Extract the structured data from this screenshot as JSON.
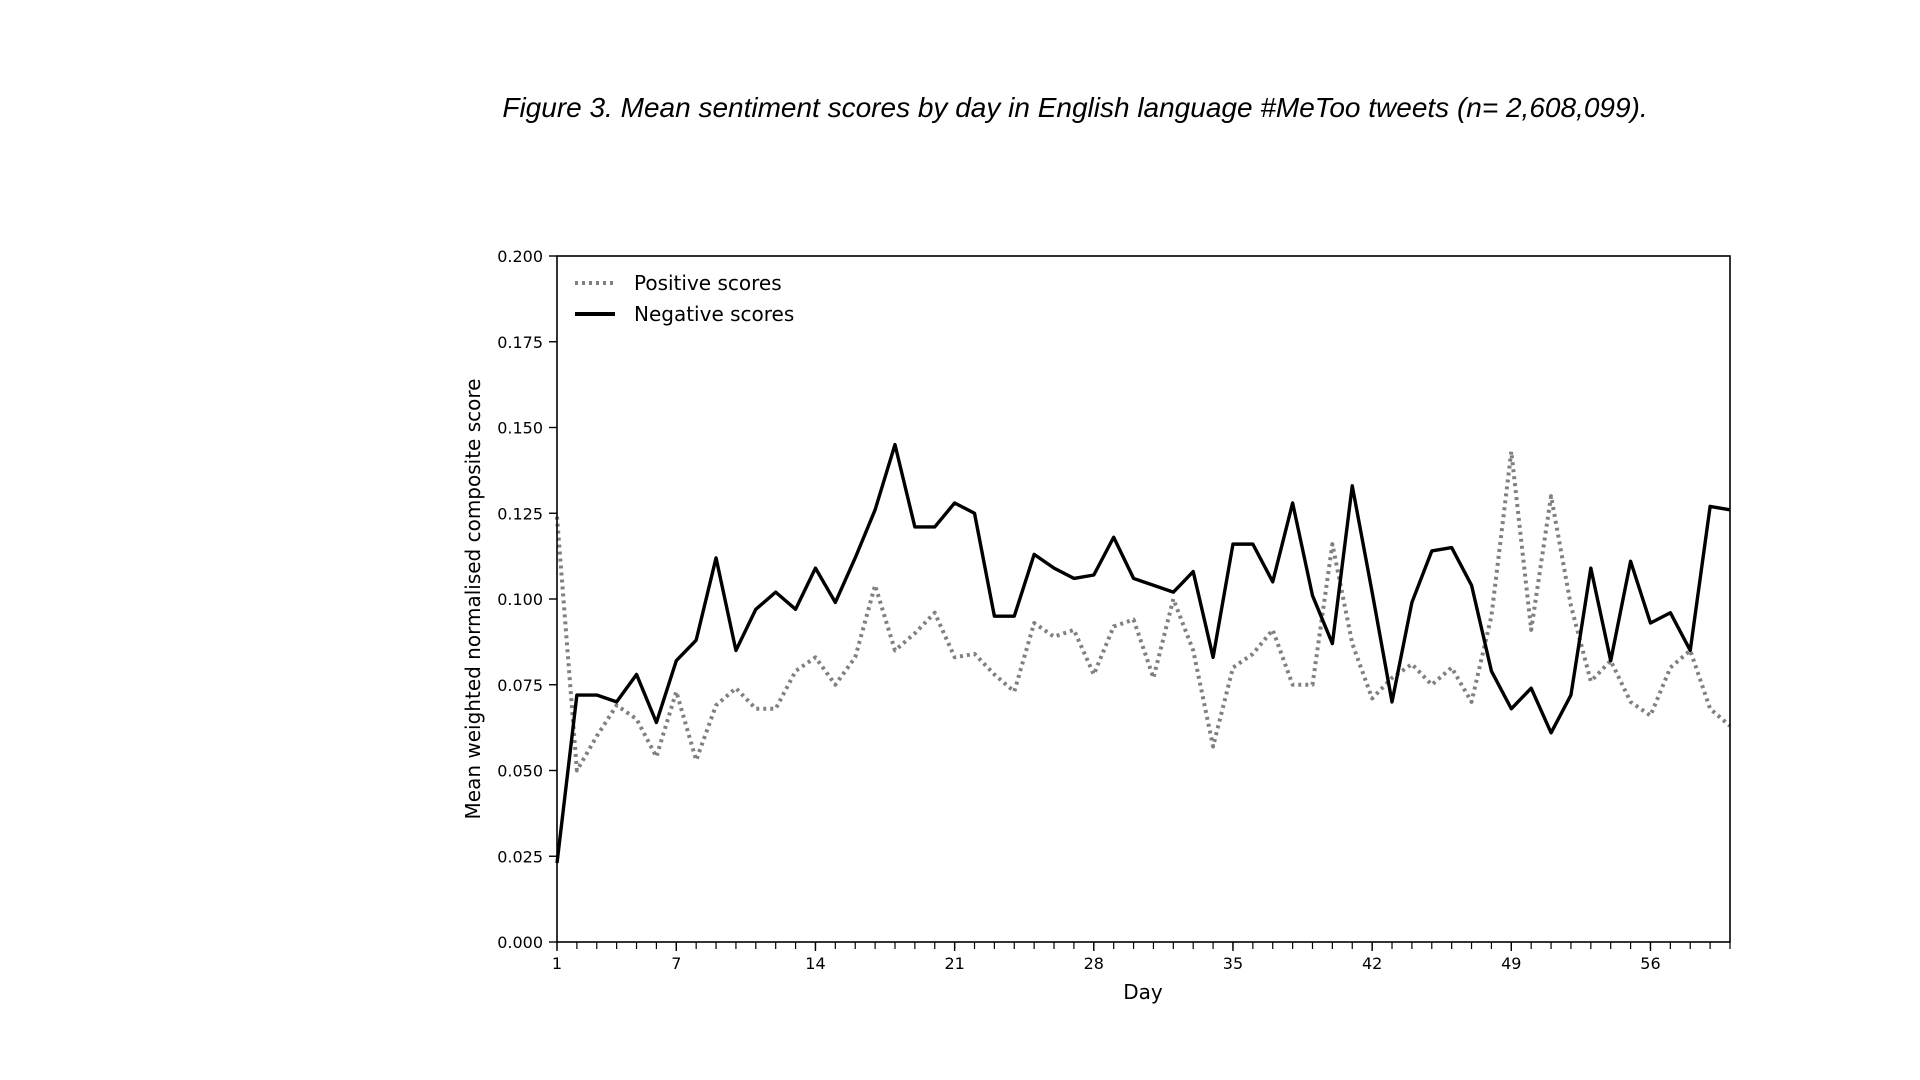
{
  "figure": {
    "title": "Figure 3. Mean sentiment scores by day in English language #MeToo tweets (n= 2,608,099)."
  },
  "chart_data": {
    "type": "line",
    "xlabel": "Day",
    "ylabel": "Mean weighted normalised composite score",
    "xlim": [
      1,
      60
    ],
    "ylim": [
      0,
      0.2
    ],
    "x_ticks": [
      1,
      7,
      14,
      21,
      28,
      35,
      42,
      49,
      56
    ],
    "y_ticks": [
      0,
      0.025,
      0.05,
      0.075,
      0.1,
      0.125,
      0.15,
      0.175,
      0.2
    ],
    "y_tick_labels": [
      "0.000",
      "0.025",
      "0.050",
      "0.075",
      "0.100",
      "0.125",
      "0.150",
      "0.175",
      "0.200"
    ],
    "legend_position": "top-left",
    "grid": false,
    "x": [
      1,
      2,
      3,
      4,
      5,
      6,
      7,
      8,
      9,
      10,
      11,
      12,
      13,
      14,
      15,
      16,
      17,
      18,
      19,
      20,
      21,
      22,
      23,
      24,
      25,
      26,
      27,
      28,
      29,
      30,
      31,
      32,
      33,
      34,
      35,
      36,
      37,
      38,
      39,
      40,
      41,
      42,
      43,
      44,
      45,
      46,
      47,
      48,
      49,
      50,
      51,
      52,
      53,
      54,
      55,
      56,
      57,
      58,
      59,
      60
    ],
    "series": [
      {
        "name": "Positive scores",
        "style": "dotted",
        "color": "#808080",
        "values": [
          0.124,
          0.05,
          0.06,
          0.069,
          0.065,
          0.054,
          0.073,
          0.053,
          0.069,
          0.074,
          0.068,
          0.068,
          0.079,
          0.083,
          0.075,
          0.083,
          0.104,
          0.085,
          0.09,
          0.096,
          0.083,
          0.084,
          0.078,
          0.073,
          0.093,
          0.089,
          0.091,
          0.078,
          0.092,
          0.094,
          0.077,
          0.1,
          0.085,
          0.057,
          0.08,
          0.084,
          0.091,
          0.075,
          0.075,
          0.116,
          0.087,
          0.071,
          0.077,
          0.081,
          0.075,
          0.08,
          0.07,
          0.095,
          0.143,
          0.091,
          0.13,
          0.098,
          0.076,
          0.082,
          0.07,
          0.066,
          0.08,
          0.085,
          0.068,
          0.063
        ]
      },
      {
        "name": "Negative scores",
        "style": "solid",
        "color": "#000000",
        "values": [
          0.023,
          0.072,
          0.072,
          0.07,
          0.078,
          0.064,
          0.082,
          0.088,
          0.112,
          0.085,
          0.097,
          0.102,
          0.097,
          0.109,
          0.099,
          0.112,
          0.126,
          0.145,
          0.121,
          0.121,
          0.128,
          0.125,
          0.095,
          0.095,
          0.113,
          0.109,
          0.106,
          0.107,
          0.118,
          0.106,
          0.104,
          0.102,
          0.108,
          0.083,
          0.116,
          0.116,
          0.105,
          0.128,
          0.101,
          0.087,
          0.133,
          0.102,
          0.07,
          0.099,
          0.114,
          0.115,
          0.104,
          0.079,
          0.068,
          0.074,
          0.061,
          0.072,
          0.109,
          0.082,
          0.111,
          0.093,
          0.096,
          0.085,
          0.127,
          0.126
        ]
      }
    ]
  }
}
